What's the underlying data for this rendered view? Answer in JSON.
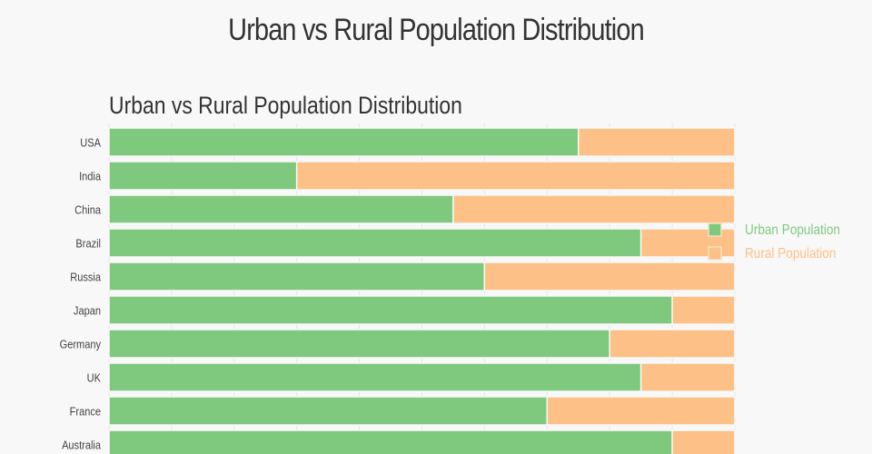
{
  "page_title": "Urban vs Rural Population Distribution",
  "chart_data": {
    "type": "bar",
    "orientation": "horizontal",
    "stacked": true,
    "title": "Urban vs Rural Population Distribution",
    "categories": [
      "USA",
      "India",
      "China",
      "Brazil",
      "Russia",
      "Japan",
      "Germany",
      "UK",
      "France",
      "Australia"
    ],
    "series": [
      {
        "name": "Urban Population",
        "color": "#7fc97f",
        "values": [
          75,
          30,
          55,
          85,
          60,
          90,
          80,
          85,
          70,
          90
        ]
      },
      {
        "name": "Rural Population",
        "color": "#fdc086",
        "values": [
          25,
          70,
          45,
          15,
          40,
          10,
          20,
          15,
          30,
          10
        ]
      }
    ],
    "xlim": [
      0,
      100
    ],
    "grid": true,
    "legend_position": "right"
  }
}
